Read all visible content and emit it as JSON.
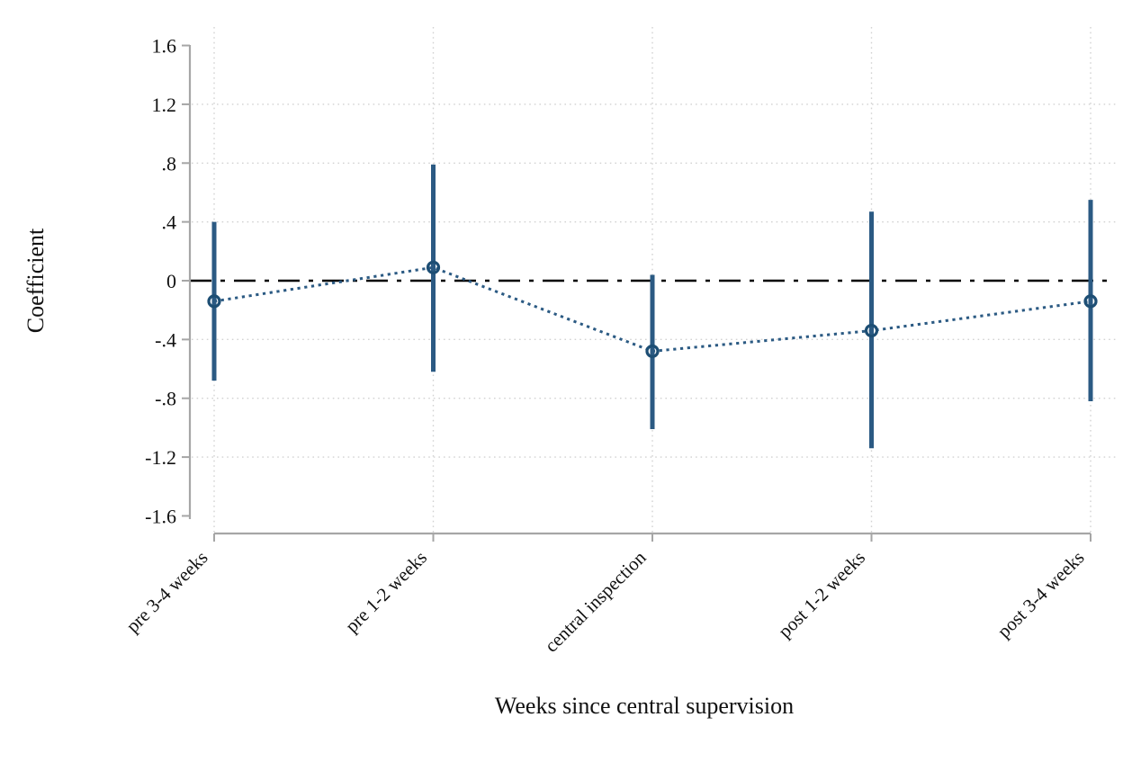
{
  "figure": {
    "background": "#ffffff"
  },
  "chart_data": {
    "type": "scatter",
    "subtype": "coefficient-plot-with-ci-bars",
    "title": "",
    "xlabel": "Weeks since central supervision",
    "ylabel": "Coefficient",
    "categories": [
      "pre 3-4 weeks",
      "pre 1-2 weeks",
      "central inspection",
      "post 1-2 weeks",
      "post 3-4 weeks"
    ],
    "series": [
      {
        "name": "coefficient",
        "values": [
          -0.14,
          0.09,
          -0.48,
          -0.34,
          -0.14
        ],
        "ci_low": [
          -0.68,
          -0.62,
          -1.01,
          -1.14,
          -0.82
        ],
        "ci_high": [
          0.4,
          0.79,
          0.04,
          0.47,
          0.55
        ]
      }
    ],
    "reference_line_y": 0,
    "ylim": [
      -1.6,
      1.6
    ],
    "yticks": {
      "values": [
        1.6,
        1.2,
        0.8,
        0.4,
        0,
        -0.4,
        -0.8,
        -1.2,
        -1.6
      ],
      "labels": [
        "1.6",
        "1.2",
        ".8",
        ".4",
        "0",
        "-.4",
        "-.8",
        "-1.2",
        "-1.6"
      ]
    },
    "grid": true,
    "legend": "none",
    "marker_style": "hollow-circle",
    "connector_style": "dotted",
    "colors": {
      "series": "#2b5a83",
      "marker_ring": "#1d4e74",
      "zero_line": "#000000",
      "grid": "#d2d2d2",
      "axis": "#a6a6a6",
      "text": "#111111"
    }
  }
}
